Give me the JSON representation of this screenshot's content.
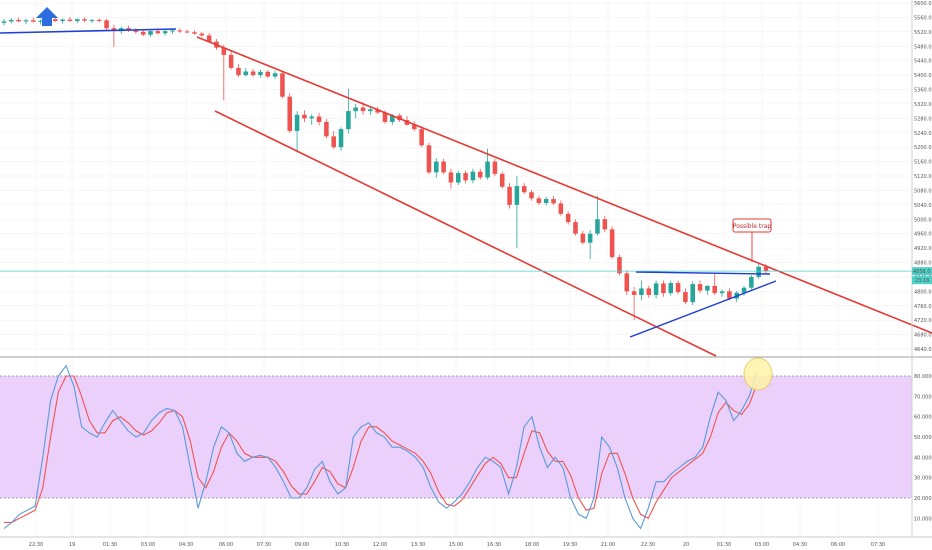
{
  "colors": {
    "up": "#26a69a",
    "down": "#ef5350",
    "channel": "#e53935",
    "triangle": "#1e3fd8",
    "price_line": "#4dd0c8",
    "stoch_k": "#5b9ad8",
    "stoch_d": "#ef5350",
    "band_fill": "#e8c8fc",
    "grid": "#eeeeee",
    "arrow": "#2d6cdf",
    "highlight": "#fff3a8"
  },
  "chart_data": [
    {
      "type": "candlestick",
      "y_ticks": [
        "5600.0",
        "5560.0",
        "5520.0",
        "5480.0",
        "5440.0",
        "5400.0",
        "5360.0",
        "5320.0",
        "5280.0",
        "5240.0",
        "5200.0",
        "5160.0",
        "5120.0",
        "5080.0",
        "5040.0",
        "5000.0",
        "4960.0",
        "4920.0",
        "4880.0",
        "4840.0",
        "4800.0",
        "4760.0",
        "4720.0",
        "4680.0",
        "4640.0"
      ],
      "ylim": [
        4628,
        5604
      ],
      "x_ticks": [
        "22:30",
        "19",
        "01:30",
        "03:00",
        "04:30",
        "06:00",
        "07:30",
        "09:00",
        "10:30",
        "12:00",
        "13:30",
        "15:00",
        "16:30",
        "18:00",
        "19:30",
        "21:00",
        "22:30",
        "20",
        "01:30",
        "03:00",
        "04:30",
        "06:00",
        "07:30"
      ],
      "current_price_label": "4856.0",
      "countdown_label": "23:16",
      "annotation": "Possible trap",
      "candles": [
        {
          "o": 5545,
          "h": 5556,
          "l": 5538,
          "c": 5549
        },
        {
          "o": 5549,
          "h": 5558,
          "l": 5543,
          "c": 5553
        },
        {
          "o": 5553,
          "h": 5560,
          "l": 5547,
          "c": 5549
        },
        {
          "o": 5549,
          "h": 5556,
          "l": 5541,
          "c": 5552
        },
        {
          "o": 5552,
          "h": 5560,
          "l": 5546,
          "c": 5548
        },
        {
          "o": 5548,
          "h": 5555,
          "l": 5540,
          "c": 5551
        },
        {
          "o": 5551,
          "h": 5560,
          "l": 5545,
          "c": 5555
        },
        {
          "o": 5555,
          "h": 5564,
          "l": 5548,
          "c": 5550
        },
        {
          "o": 5550,
          "h": 5557,
          "l": 5543,
          "c": 5554
        },
        {
          "o": 5554,
          "h": 5561,
          "l": 5548,
          "c": 5550
        },
        {
          "o": 5550,
          "h": 5557,
          "l": 5544,
          "c": 5555
        },
        {
          "o": 5555,
          "h": 5560,
          "l": 5547,
          "c": 5551
        },
        {
          "o": 5551,
          "h": 5556,
          "l": 5545,
          "c": 5553
        },
        {
          "o": 5553,
          "h": 5557,
          "l": 5546,
          "c": 5552
        },
        {
          "o": 5552,
          "h": 5556,
          "l": 5525,
          "c": 5530
        },
        {
          "o": 5530,
          "h": 5540,
          "l": 5478,
          "c": 5522
        },
        {
          "o": 5522,
          "h": 5535,
          "l": 5514,
          "c": 5530
        },
        {
          "o": 5530,
          "h": 5537,
          "l": 5520,
          "c": 5524
        },
        {
          "o": 5524,
          "h": 5530,
          "l": 5514,
          "c": 5520
        },
        {
          "o": 5520,
          "h": 5528,
          "l": 5508,
          "c": 5512
        },
        {
          "o": 5512,
          "h": 5526,
          "l": 5506,
          "c": 5522
        },
        {
          "o": 5522,
          "h": 5530,
          "l": 5513,
          "c": 5516
        },
        {
          "o": 5516,
          "h": 5526,
          "l": 5510,
          "c": 5522
        },
        {
          "o": 5522,
          "h": 5530,
          "l": 5514,
          "c": 5524
        },
        {
          "o": 5524,
          "h": 5530,
          "l": 5517,
          "c": 5521
        },
        {
          "o": 5521,
          "h": 5526,
          "l": 5516,
          "c": 5519
        },
        {
          "o": 5519,
          "h": 5524,
          "l": 5512,
          "c": 5515
        },
        {
          "o": 5515,
          "h": 5520,
          "l": 5506,
          "c": 5510
        },
        {
          "o": 5510,
          "h": 5517,
          "l": 5490,
          "c": 5493
        },
        {
          "o": 5493,
          "h": 5500,
          "l": 5470,
          "c": 5476
        },
        {
          "o": 5476,
          "h": 5484,
          "l": 5330,
          "c": 5456
        },
        {
          "o": 5456,
          "h": 5466,
          "l": 5415,
          "c": 5420
        },
        {
          "o": 5420,
          "h": 5430,
          "l": 5395,
          "c": 5400
        },
        {
          "o": 5400,
          "h": 5420,
          "l": 5396,
          "c": 5410
        },
        {
          "o": 5410,
          "h": 5418,
          "l": 5396,
          "c": 5400
        },
        {
          "o": 5400,
          "h": 5415,
          "l": 5393,
          "c": 5409
        },
        {
          "o": 5409,
          "h": 5414,
          "l": 5392,
          "c": 5396
        },
        {
          "o": 5396,
          "h": 5412,
          "l": 5390,
          "c": 5405
        },
        {
          "o": 5405,
          "h": 5412,
          "l": 5335,
          "c": 5340
        },
        {
          "o": 5340,
          "h": 5350,
          "l": 5240,
          "c": 5245
        },
        {
          "o": 5245,
          "h": 5300,
          "l": 5185,
          "c": 5290
        },
        {
          "o": 5290,
          "h": 5302,
          "l": 5270,
          "c": 5280
        },
        {
          "o": 5280,
          "h": 5292,
          "l": 5262,
          "c": 5285
        },
        {
          "o": 5285,
          "h": 5295,
          "l": 5260,
          "c": 5270
        },
        {
          "o": 5270,
          "h": 5278,
          "l": 5225,
          "c": 5230
        },
        {
          "o": 5230,
          "h": 5245,
          "l": 5195,
          "c": 5200
        },
        {
          "o": 5200,
          "h": 5255,
          "l": 5190,
          "c": 5250
        },
        {
          "o": 5250,
          "h": 5362,
          "l": 5238,
          "c": 5300
        },
        {
          "o": 5300,
          "h": 5320,
          "l": 5280,
          "c": 5310
        },
        {
          "o": 5310,
          "h": 5325,
          "l": 5290,
          "c": 5300
        },
        {
          "o": 5300,
          "h": 5310,
          "l": 5290,
          "c": 5305
        },
        {
          "o": 5305,
          "h": 5312,
          "l": 5292,
          "c": 5296
        },
        {
          "o": 5296,
          "h": 5302,
          "l": 5265,
          "c": 5270
        },
        {
          "o": 5270,
          "h": 5292,
          "l": 5262,
          "c": 5288
        },
        {
          "o": 5288,
          "h": 5294,
          "l": 5270,
          "c": 5275
        },
        {
          "o": 5275,
          "h": 5286,
          "l": 5260,
          "c": 5262
        },
        {
          "o": 5262,
          "h": 5272,
          "l": 5245,
          "c": 5250
        },
        {
          "o": 5250,
          "h": 5258,
          "l": 5200,
          "c": 5205
        },
        {
          "o": 5205,
          "h": 5212,
          "l": 5125,
          "c": 5130
        },
        {
          "o": 5130,
          "h": 5170,
          "l": 5115,
          "c": 5160
        },
        {
          "o": 5160,
          "h": 5168,
          "l": 5125,
          "c": 5130
        },
        {
          "o": 5130,
          "h": 5140,
          "l": 5085,
          "c": 5102
        },
        {
          "o": 5102,
          "h": 5135,
          "l": 5095,
          "c": 5128
        },
        {
          "o": 5128,
          "h": 5135,
          "l": 5100,
          "c": 5108
        },
        {
          "o": 5108,
          "h": 5140,
          "l": 5100,
          "c": 5132
        },
        {
          "o": 5132,
          "h": 5140,
          "l": 5110,
          "c": 5116
        },
        {
          "o": 5116,
          "h": 5196,
          "l": 5110,
          "c": 5160
        },
        {
          "o": 5160,
          "h": 5168,
          "l": 5120,
          "c": 5126
        },
        {
          "o": 5126,
          "h": 5132,
          "l": 5085,
          "c": 5090
        },
        {
          "o": 5090,
          "h": 5100,
          "l": 5030,
          "c": 5040
        },
        {
          "o": 5040,
          "h": 5120,
          "l": 4920,
          "c": 5092
        },
        {
          "o": 5092,
          "h": 5100,
          "l": 5070,
          "c": 5075
        },
        {
          "o": 5075,
          "h": 5082,
          "l": 5052,
          "c": 5058
        },
        {
          "o": 5058,
          "h": 5065,
          "l": 5040,
          "c": 5045
        },
        {
          "o": 5045,
          "h": 5062,
          "l": 5038,
          "c": 5056
        },
        {
          "o": 5056,
          "h": 5064,
          "l": 5040,
          "c": 5044
        },
        {
          "o": 5044,
          "h": 5052,
          "l": 5010,
          "c": 5015
        },
        {
          "o": 5015,
          "h": 5022,
          "l": 4985,
          "c": 4992
        },
        {
          "o": 4992,
          "h": 5000,
          "l": 4955,
          "c": 4960
        },
        {
          "o": 4960,
          "h": 4968,
          "l": 4930,
          "c": 4935
        },
        {
          "o": 4935,
          "h": 4970,
          "l": 4890,
          "c": 4960
        },
        {
          "o": 4960,
          "h": 5065,
          "l": 4955,
          "c": 5000
        },
        {
          "o": 5000,
          "h": 5010,
          "l": 4965,
          "c": 4972
        },
        {
          "o": 4972,
          "h": 4980,
          "l": 4890,
          "c": 4895
        },
        {
          "o": 4895,
          "h": 4902,
          "l": 4845,
          "c": 4850
        },
        {
          "o": 4850,
          "h": 4858,
          "l": 4790,
          "c": 4800
        },
        {
          "o": 4800,
          "h": 4812,
          "l": 4720,
          "c": 4790
        },
        {
          "o": 4790,
          "h": 4830,
          "l": 4775,
          "c": 4808
        },
        {
          "o": 4808,
          "h": 4815,
          "l": 4782,
          "c": 4790
        },
        {
          "o": 4790,
          "h": 4830,
          "l": 4780,
          "c": 4822
        },
        {
          "o": 4822,
          "h": 4830,
          "l": 4785,
          "c": 4795
        },
        {
          "o": 4795,
          "h": 4830,
          "l": 4788,
          "c": 4823
        },
        {
          "o": 4823,
          "h": 4830,
          "l": 4792,
          "c": 4798
        },
        {
          "o": 4798,
          "h": 4808,
          "l": 4765,
          "c": 4770
        },
        {
          "o": 4770,
          "h": 4828,
          "l": 4762,
          "c": 4820
        },
        {
          "o": 4820,
          "h": 4830,
          "l": 4795,
          "c": 4802
        },
        {
          "o": 4802,
          "h": 4818,
          "l": 4790,
          "c": 4815
        },
        {
          "o": 4815,
          "h": 4850,
          "l": 4790,
          "c": 4795
        },
        {
          "o": 4795,
          "h": 4805,
          "l": 4785,
          "c": 4800
        },
        {
          "o": 4800,
          "h": 4808,
          "l": 4775,
          "c": 4780
        },
        {
          "o": 4780,
          "h": 4800,
          "l": 4770,
          "c": 4796
        },
        {
          "o": 4796,
          "h": 4815,
          "l": 4788,
          "c": 4810
        },
        {
          "o": 4810,
          "h": 4845,
          "l": 4805,
          "c": 4840
        },
        {
          "o": 4840,
          "h": 4880,
          "l": 4835,
          "c": 4868
        },
        {
          "o": 4868,
          "h": 4875,
          "l": 4850,
          "c": 4856
        }
      ]
    },
    {
      "type": "line",
      "title": "",
      "y_ticks": [
        "80.0000",
        "70.0000",
        "60.0000",
        "50.0000",
        "40.0000",
        "30.0000",
        "20.0000",
        "10.0000"
      ],
      "ylim": [
        0,
        90
      ],
      "band": [
        20,
        80
      ],
      "series": [
        {
          "key": "k",
          "values": [
            5,
            8,
            12,
            14,
            16,
            40,
            68,
            80,
            85,
            75,
            55,
            52,
            50,
            57,
            63,
            58,
            53,
            50,
            52,
            58,
            62,
            64,
            63,
            55,
            35,
            15,
            28,
            45,
            55,
            52,
            42,
            38,
            40,
            41,
            40,
            35,
            28,
            20,
            20,
            25,
            34,
            38,
            28,
            22,
            25,
            50,
            55,
            57,
            52,
            50,
            45,
            45,
            43,
            40,
            35,
            25,
            18,
            15,
            18,
            22,
            28,
            35,
            40,
            38,
            35,
            22,
            35,
            55,
            60,
            45,
            35,
            40,
            35,
            20,
            12,
            10,
            20,
            50,
            45,
            35,
            20,
            10,
            5,
            15,
            28,
            28,
            32,
            35,
            38,
            40,
            45,
            60,
            72,
            68,
            58,
            63,
            70,
            82
          ]
        },
        {
          "key": "d",
          "values": [
            8,
            8,
            10,
            12,
            14,
            25,
            50,
            72,
            80,
            80,
            70,
            58,
            52,
            52,
            58,
            60,
            57,
            53,
            51,
            53,
            57,
            62,
            63,
            60,
            48,
            30,
            25,
            33,
            45,
            52,
            48,
            42,
            40,
            40,
            40,
            38,
            33,
            26,
            22,
            22,
            28,
            35,
            33,
            27,
            25,
            35,
            48,
            55,
            55,
            52,
            48,
            46,
            44,
            42,
            38,
            32,
            23,
            17,
            16,
            19,
            25,
            31,
            37,
            40,
            37,
            30,
            30,
            42,
            53,
            52,
            43,
            38,
            38,
            31,
            20,
            14,
            15,
            32,
            42,
            42,
            32,
            20,
            12,
            10,
            18,
            24,
            30,
            33,
            36,
            39,
            42,
            50,
            62,
            67,
            63,
            61,
            66,
            76
          ]
        }
      ]
    }
  ]
}
